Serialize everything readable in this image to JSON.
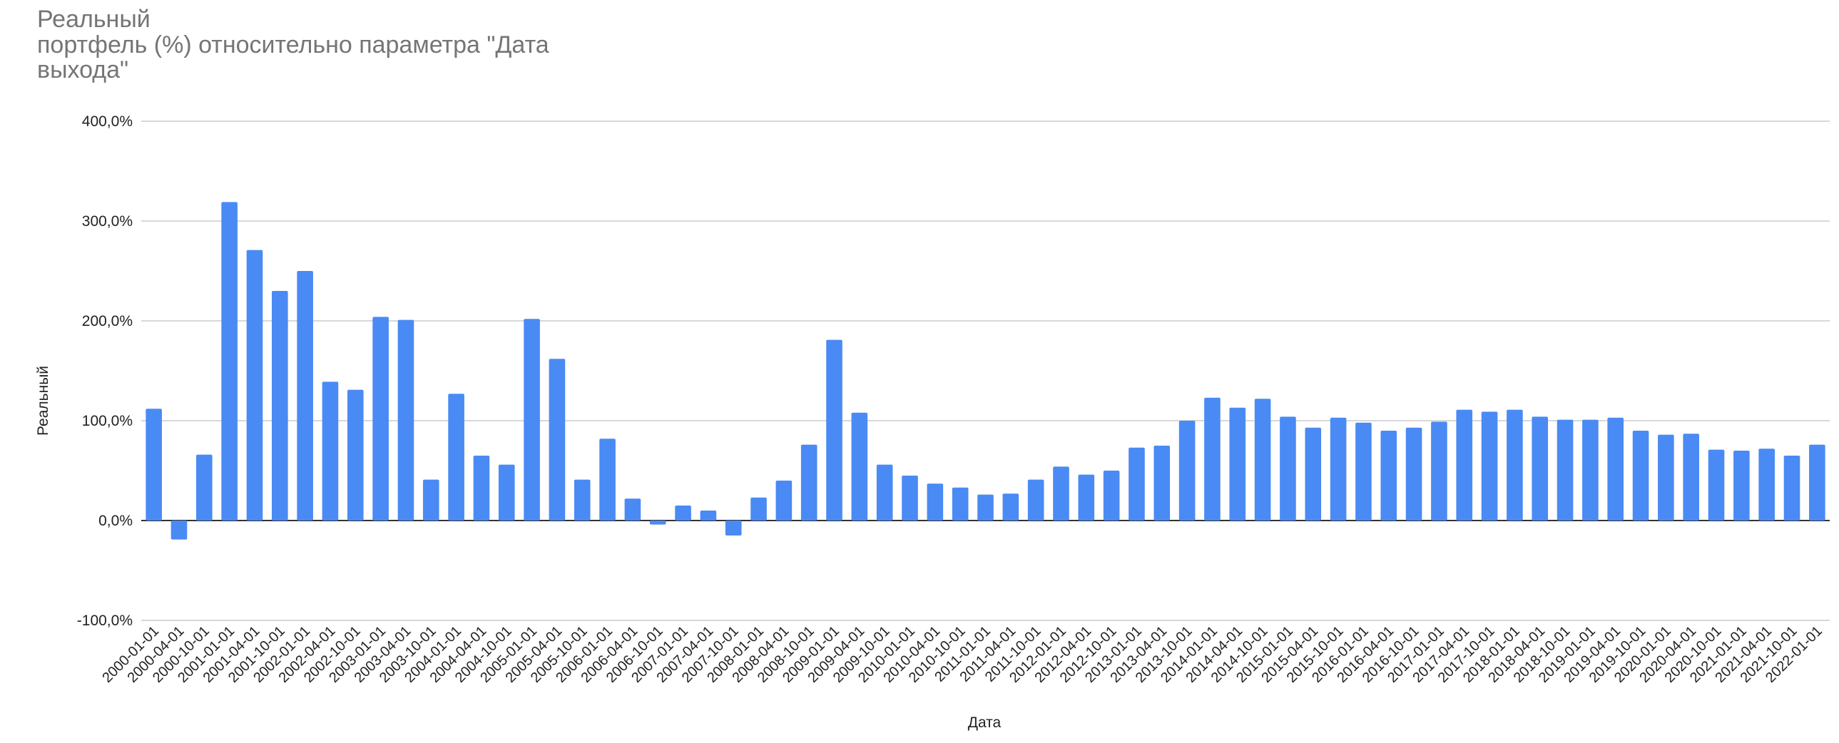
{
  "chart_data": {
    "type": "bar",
    "title": "Реальный\nпортфель (%) относительно параметра \"Дата\nвыхода\"",
    "xlabel": "Дата",
    "ylabel": "Реальный",
    "ylim": [
      -100,
      400
    ],
    "yticks": [
      -100,
      0,
      100,
      200,
      300,
      400
    ],
    "ytick_labels": [
      "-100,0%",
      "0,0%",
      "100,0%",
      "200,0%",
      "300,0%",
      "400,0%"
    ],
    "grid": true,
    "legend": "none",
    "bar_color": "#4a8af4",
    "categories": [
      "2000-01-01",
      "2000-04-01",
      "2000-10-01",
      "2001-01-01",
      "2001-04-01",
      "2001-10-01",
      "2002-01-01",
      "2002-04-01",
      "2002-10-01",
      "2003-01-01",
      "2003-04-01",
      "2003-10-01",
      "2004-01-01",
      "2004-04-01",
      "2004-10-01",
      "2005-01-01",
      "2005-04-01",
      "2005-10-01",
      "2006-01-01",
      "2006-04-01",
      "2006-10-01",
      "2007-01-01",
      "2007-04-01",
      "2007-10-01",
      "2008-01-01",
      "2008-04-01",
      "2008-10-01",
      "2009-01-01",
      "2009-04-01",
      "2009-10-01",
      "2010-01-01",
      "2010-04-01",
      "2010-10-01",
      "2011-01-01",
      "2011-04-01",
      "2011-10-01",
      "2012-01-01",
      "2012-04-01",
      "2012-10-01",
      "2013-01-01",
      "2013-04-01",
      "2013-10-01",
      "2014-01-01",
      "2014-04-01",
      "2014-10-01",
      "2015-01-01",
      "2015-04-01",
      "2015-10-01",
      "2016-01-01",
      "2016-04-01",
      "2016-10-01",
      "2017-01-01",
      "2017-04-01",
      "2017-10-01",
      "2018-01-01",
      "2018-04-01",
      "2018-10-01",
      "2019-01-01",
      "2019-04-01",
      "2019-10-01",
      "2020-01-01",
      "2020-04-01",
      "2020-10-01",
      "2021-01-01",
      "2021-04-01",
      "2021-10-01",
      "2022-01-01"
    ],
    "values": [
      112,
      -19,
      66,
      319,
      271,
      230,
      250,
      139,
      131,
      204,
      201,
      41,
      127,
      65,
      56,
      202,
      162,
      41,
      82,
      22,
      -4,
      15,
      10,
      -15,
      23,
      40,
      76,
      181,
      108,
      56,
      45,
      37,
      33,
      26,
      27,
      41,
      54,
      46,
      50,
      73,
      75,
      100,
      123,
      113,
      122,
      104,
      93,
      103,
      98,
      90,
      93,
      99,
      111,
      109,
      111,
      104,
      101,
      101,
      103,
      90,
      86,
      87,
      71,
      70,
      72,
      65,
      76
    ]
  }
}
